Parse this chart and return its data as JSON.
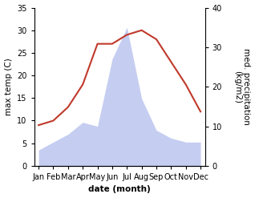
{
  "months": [
    "Jan",
    "Feb",
    "Mar",
    "Apr",
    "May",
    "Jun",
    "Jul",
    "Aug",
    "Sep",
    "Oct",
    "Nov",
    "Dec"
  ],
  "temperature": [
    9,
    10,
    13,
    18,
    27,
    27,
    29,
    30,
    28,
    23,
    18,
    12
  ],
  "precipitation": [
    4,
    6,
    8,
    11,
    10,
    27,
    35,
    17,
    9,
    7,
    6,
    6
  ],
  "temp_color": "#c0392b",
  "precip_color_fill": "#bbc5ef",
  "temp_ylim": [
    0,
    35
  ],
  "precip_ylim": [
    0,
    40
  ],
  "temp_yticks": [
    0,
    5,
    10,
    15,
    20,
    25,
    30,
    35
  ],
  "precip_yticks": [
    0,
    10,
    20,
    30,
    40
  ],
  "xlabel": "date (month)",
  "ylabel_left": "max temp (C)",
  "ylabel_right": "med. precipitation\n(kg/m2)",
  "label_fontsize": 7.5,
  "tick_fontsize": 7,
  "linewidth": 1.5
}
